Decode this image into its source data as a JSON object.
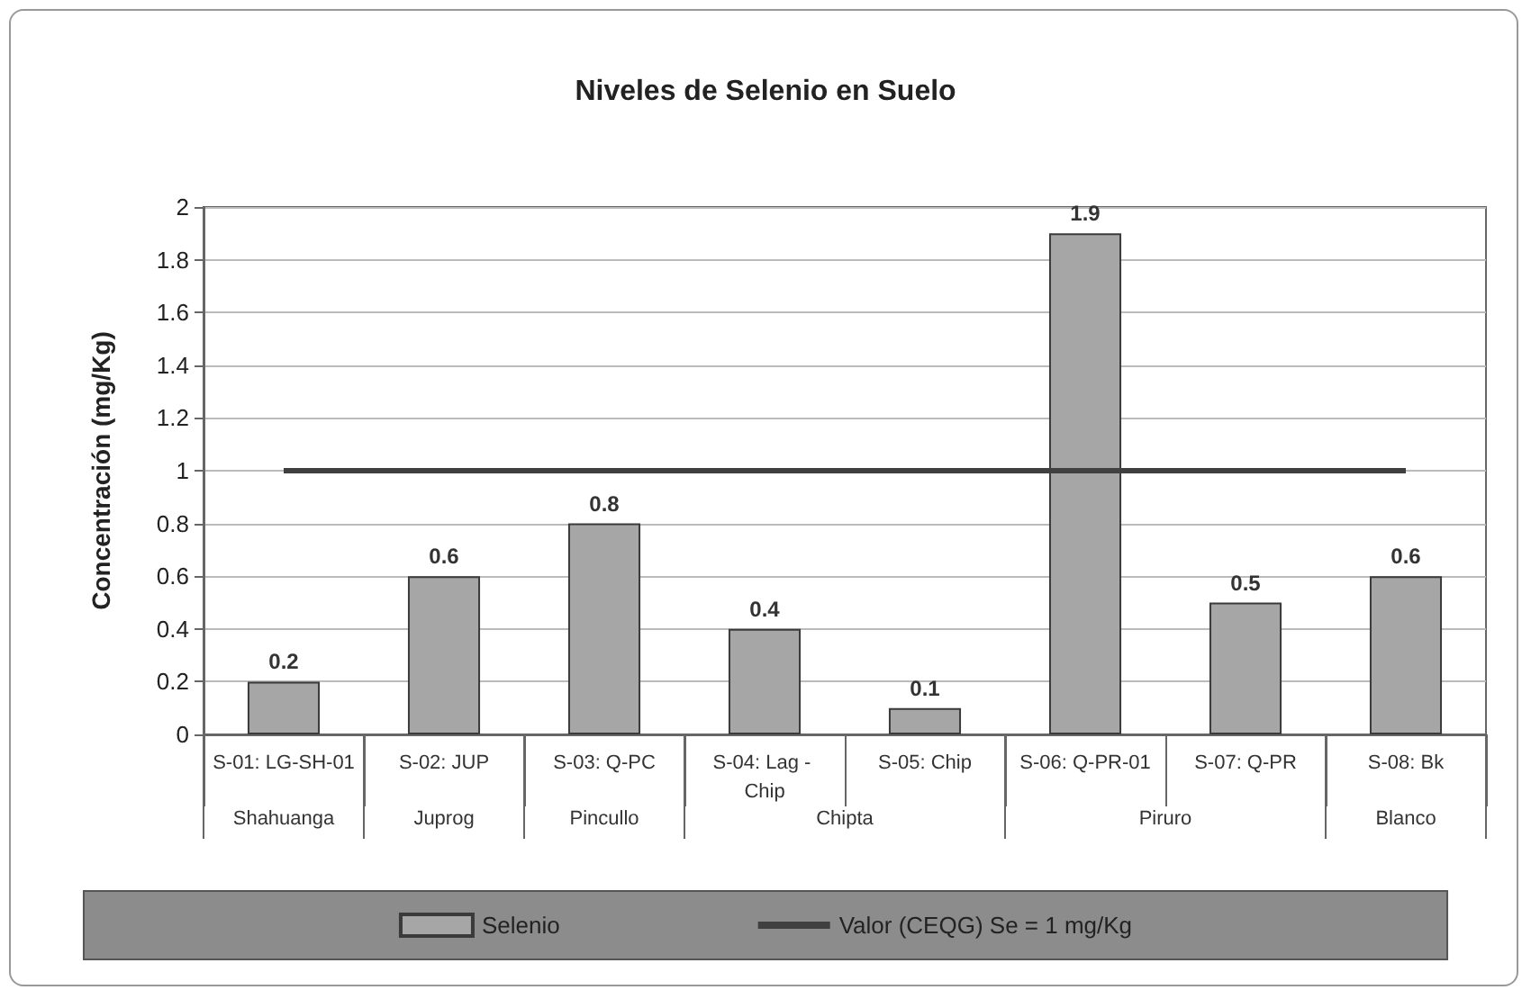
{
  "chart_data": {
    "type": "bar",
    "title": "Niveles de Selenio en Suelo",
    "ylabel": "Concentración (mg/Kg)",
    "categories": [
      "S-01: LG-SH-01",
      "S-02: JUP",
      "S-03: Q-PC",
      "S-04: Lag - Chip",
      "S-05: Chip",
      "S-06: Q-PR-01",
      "S-07: Q-PR",
      "S-08: Bk"
    ],
    "series": [
      {
        "name": "Selenio",
        "color": "#a6a6a6",
        "values": [
          0.2,
          0.6,
          0.8,
          0.4,
          0.1,
          1.9,
          0.5,
          0.6
        ],
        "value_labels": [
          "0.2",
          "0.6",
          "0.8",
          "0.4",
          "0.1",
          "1.9",
          "0.5",
          "0.6"
        ]
      },
      {
        "name": "Valor (CEQG) Se = 1 mg/Kg",
        "type": "line",
        "color": "#404040",
        "values": [
          1,
          1,
          1,
          1,
          1,
          1,
          1,
          1
        ]
      }
    ],
    "ylim": [
      0,
      2
    ],
    "yticks": [
      0,
      0.2,
      0.4,
      0.6,
      0.8,
      1,
      1.2,
      1.4,
      1.6,
      1.8,
      2
    ],
    "grid": "y",
    "legend": "bottom",
    "marker": "none",
    "annotations": [
      "Shahuanga",
      "Juprog",
      "Pincullo",
      "Chipta",
      "Piruro",
      "Blanco"
    ]
  }
}
